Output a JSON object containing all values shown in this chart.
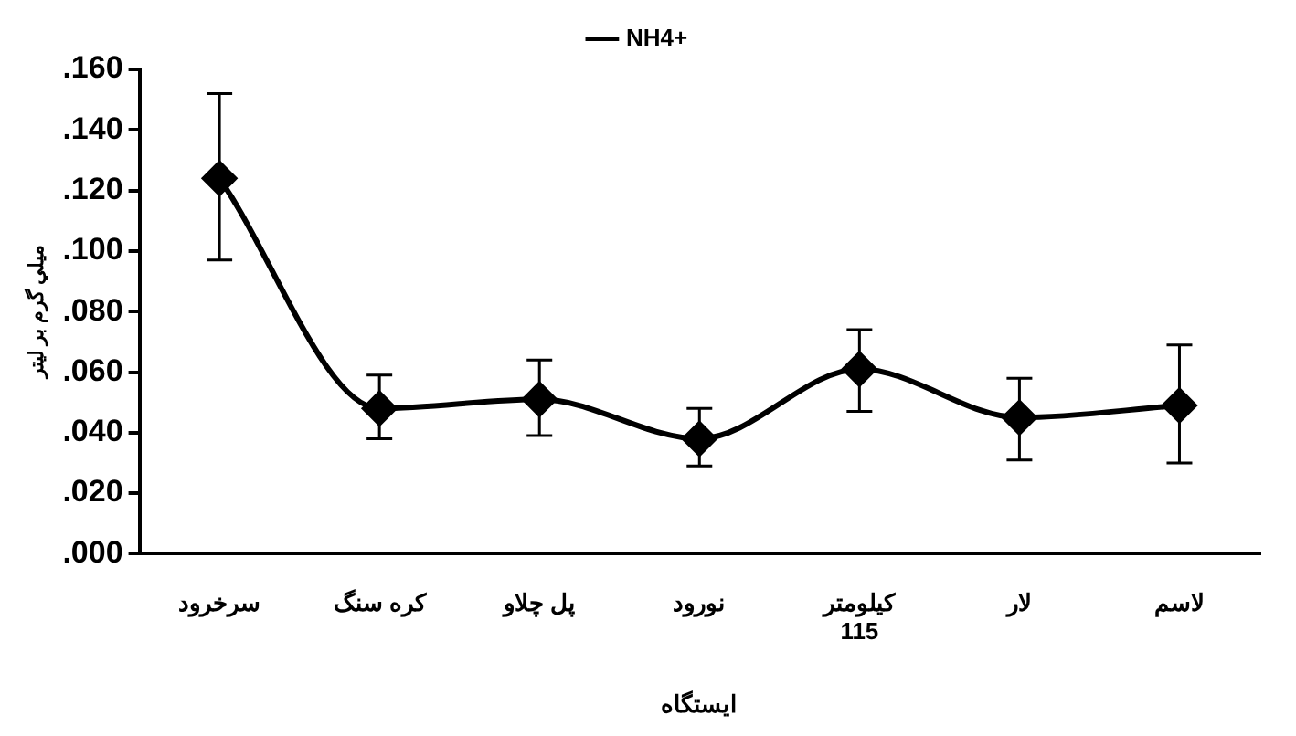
{
  "chart_data": {
    "type": "line",
    "xlabel": "ایستگاه",
    "ylabel": "ميلي گرم بر ليتر",
    "categories": [
      "سرخرود",
      "کره سنگ",
      "پل چلاو",
      "نورود",
      "کیلومتر\n115",
      "لار",
      "لاسم"
    ],
    "series": [
      {
        "name": "NH4+",
        "color": "#000000",
        "values": [
          0.124,
          0.048,
          0.051,
          0.038,
          0.061,
          0.045,
          0.049
        ],
        "errors": [
          [
            0.097,
            0.152
          ],
          [
            0.038,
            0.059
          ],
          [
            0.039,
            0.064
          ],
          [
            0.029,
            0.048
          ],
          [
            0.047,
            0.074
          ],
          [
            0.031,
            0.058
          ],
          [
            0.03,
            0.069
          ]
        ]
      }
    ],
    "ylim": [
      0,
      0.16
    ],
    "yticks": [
      {
        "value": 0,
        "label": ".000"
      },
      {
        "value": 0.02,
        "label": ".020"
      },
      {
        "value": 0.04,
        "label": ".040"
      },
      {
        "value": 0.06,
        "label": ".060"
      },
      {
        "value": 0.08,
        "label": ".080"
      },
      {
        "value": 0.1,
        "label": ".100"
      },
      {
        "value": 0.12,
        "label": ".120"
      },
      {
        "value": 0.14,
        "label": ".140"
      },
      {
        "value": 0.16,
        "label": ".160"
      }
    ],
    "grid": false,
    "legend": "top",
    "marker": "diamond",
    "line_style": "solid"
  }
}
